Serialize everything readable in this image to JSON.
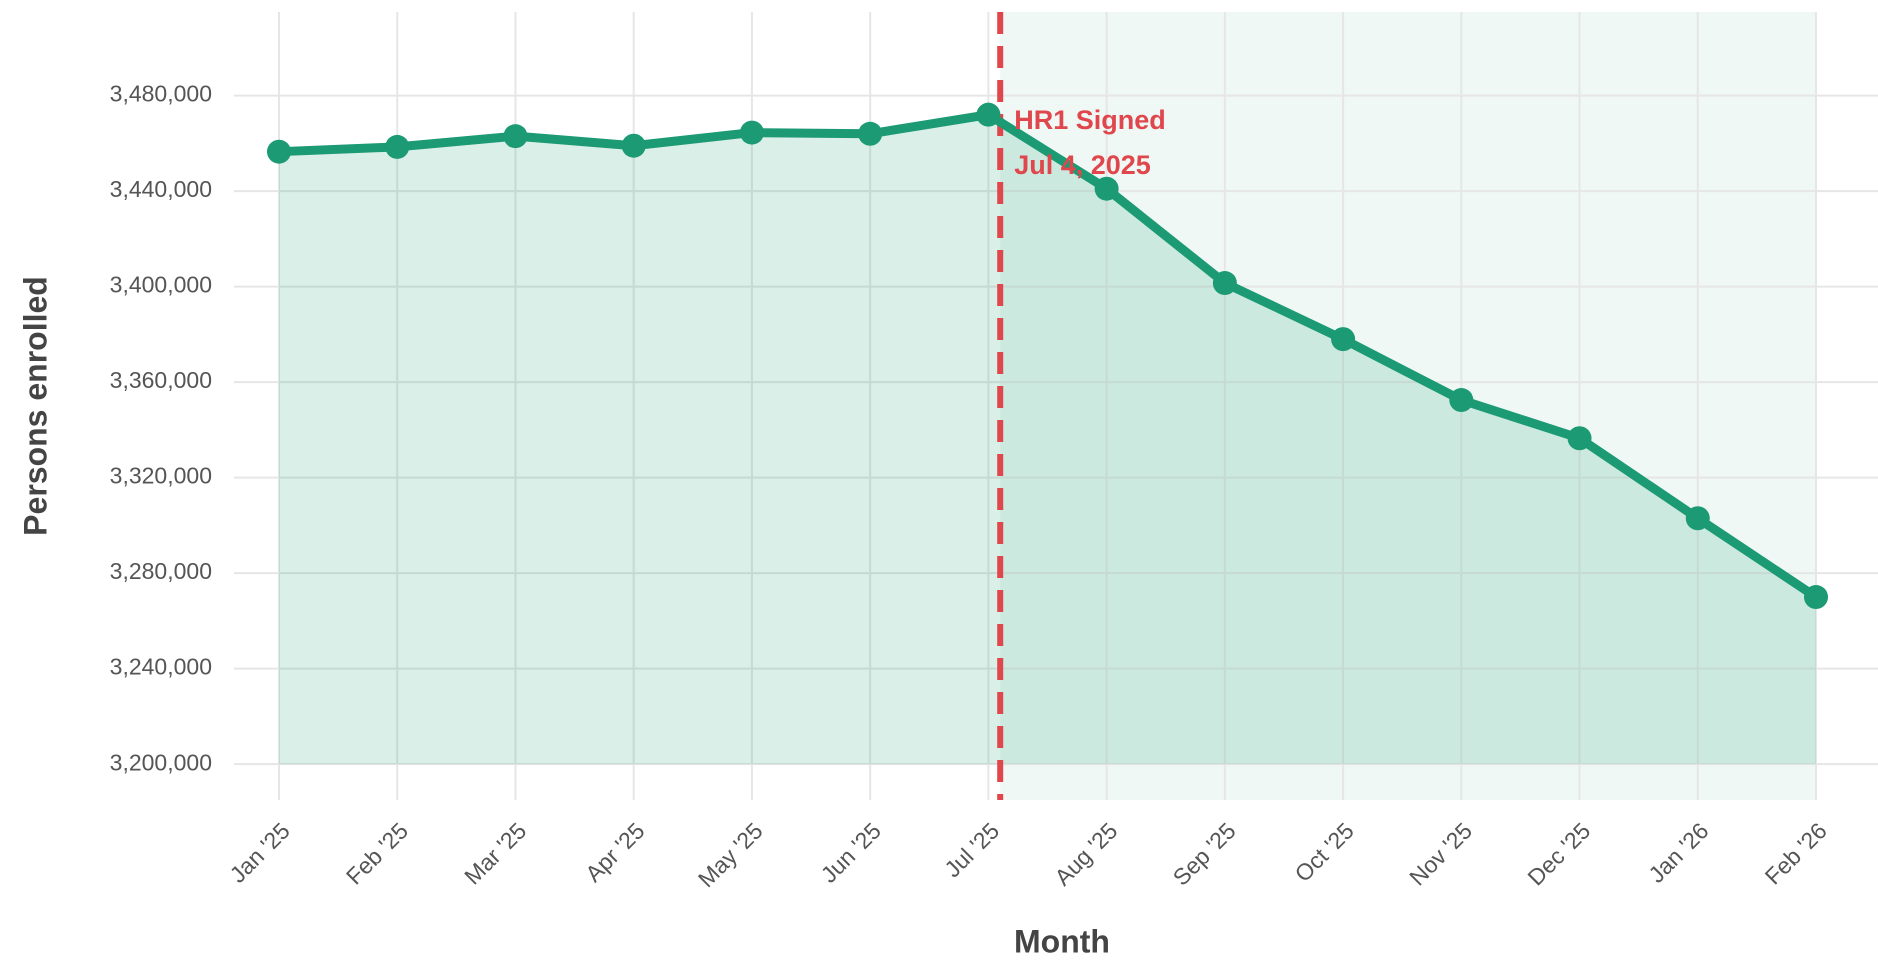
{
  "chart_data": {
    "type": "line",
    "y_label": "Persons enrolled",
    "x_label": "Month",
    "categories": [
      "Jan '25",
      "Feb '25",
      "Mar '25",
      "Apr '25",
      "May '25",
      "Jun '25",
      "Jul '25",
      "Aug '25",
      "Sep '25",
      "Oct '25",
      "Nov '25",
      "Dec '25",
      "Jan '26",
      "Feb '26"
    ],
    "values": [
      3456500,
      3458500,
      3463000,
      3459000,
      3464500,
      3464000,
      3472000,
      3441000,
      3401500,
      3378000,
      3352500,
      3336500,
      3303000,
      3270000
    ],
    "color": "#1b9a73",
    "ylim": [
      3185000,
      3515000
    ],
    "yticks": [
      {
        "value": 3200000,
        "label": "3,200,000"
      },
      {
        "value": 3240000,
        "label": "3,240,000"
      },
      {
        "value": 3280000,
        "label": "3,280,000"
      },
      {
        "value": 3320000,
        "label": "3,320,000"
      },
      {
        "value": 3360000,
        "label": "3,360,000"
      },
      {
        "value": 3400000,
        "label": "3,400,000"
      },
      {
        "value": 3440000,
        "label": "3,440,000"
      },
      {
        "value": 3480000,
        "label": "3,480,000"
      }
    ],
    "grid": true,
    "annotation": {
      "lines": [
        "HR1 Signed",
        "Jul 4, 2025"
      ],
      "color": "#e0474c",
      "after_category": 6
    }
  }
}
